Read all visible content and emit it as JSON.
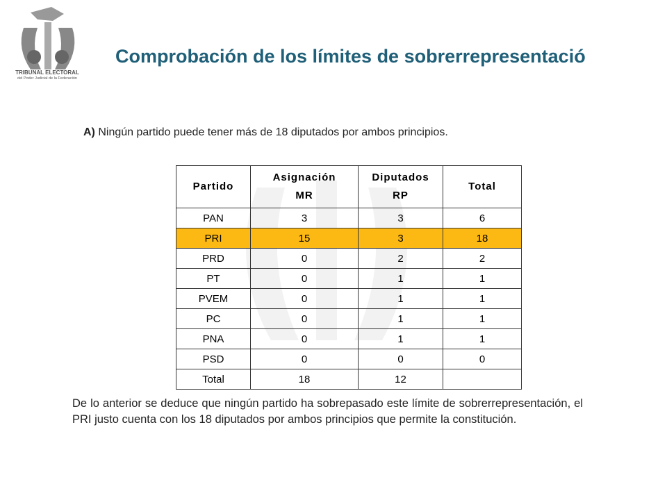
{
  "logo": {
    "name": "TRIBUNAL ELECTORAL",
    "subtitle": "del Poder Judicial de la Federación"
  },
  "title": "Comprobación de los límites de sobrerrepresentació",
  "statement": {
    "label": "A)",
    "text": "Ningún partido puede tener más de 18 diputados por ambos principios."
  },
  "table": {
    "headers": [
      [
        "Partido"
      ],
      [
        "Asignación",
        "MR"
      ],
      [
        "Diputados",
        "RP"
      ],
      [
        "Total"
      ]
    ],
    "highlight_row": 1,
    "highlight_color": "#fdb913",
    "rows": [
      [
        "PAN",
        3,
        3,
        6
      ],
      [
        "PRI",
        15,
        3,
        18
      ],
      [
        "PRD",
        0,
        2,
        2
      ],
      [
        "PT",
        0,
        1,
        1
      ],
      [
        "PVEM",
        0,
        1,
        1
      ],
      [
        "PC",
        0,
        1,
        1
      ],
      [
        "PNA",
        0,
        1,
        1
      ],
      [
        "PSD",
        0,
        0,
        0
      ],
      [
        "Total",
        18,
        12
      ]
    ]
  },
  "conclusion": "De lo anterior se deduce que ningún partido ha sobrepasado este límite de sobrerrepresentación, el PRI justo cuenta con los 18 diputados por ambos principios que permite la constitución."
}
